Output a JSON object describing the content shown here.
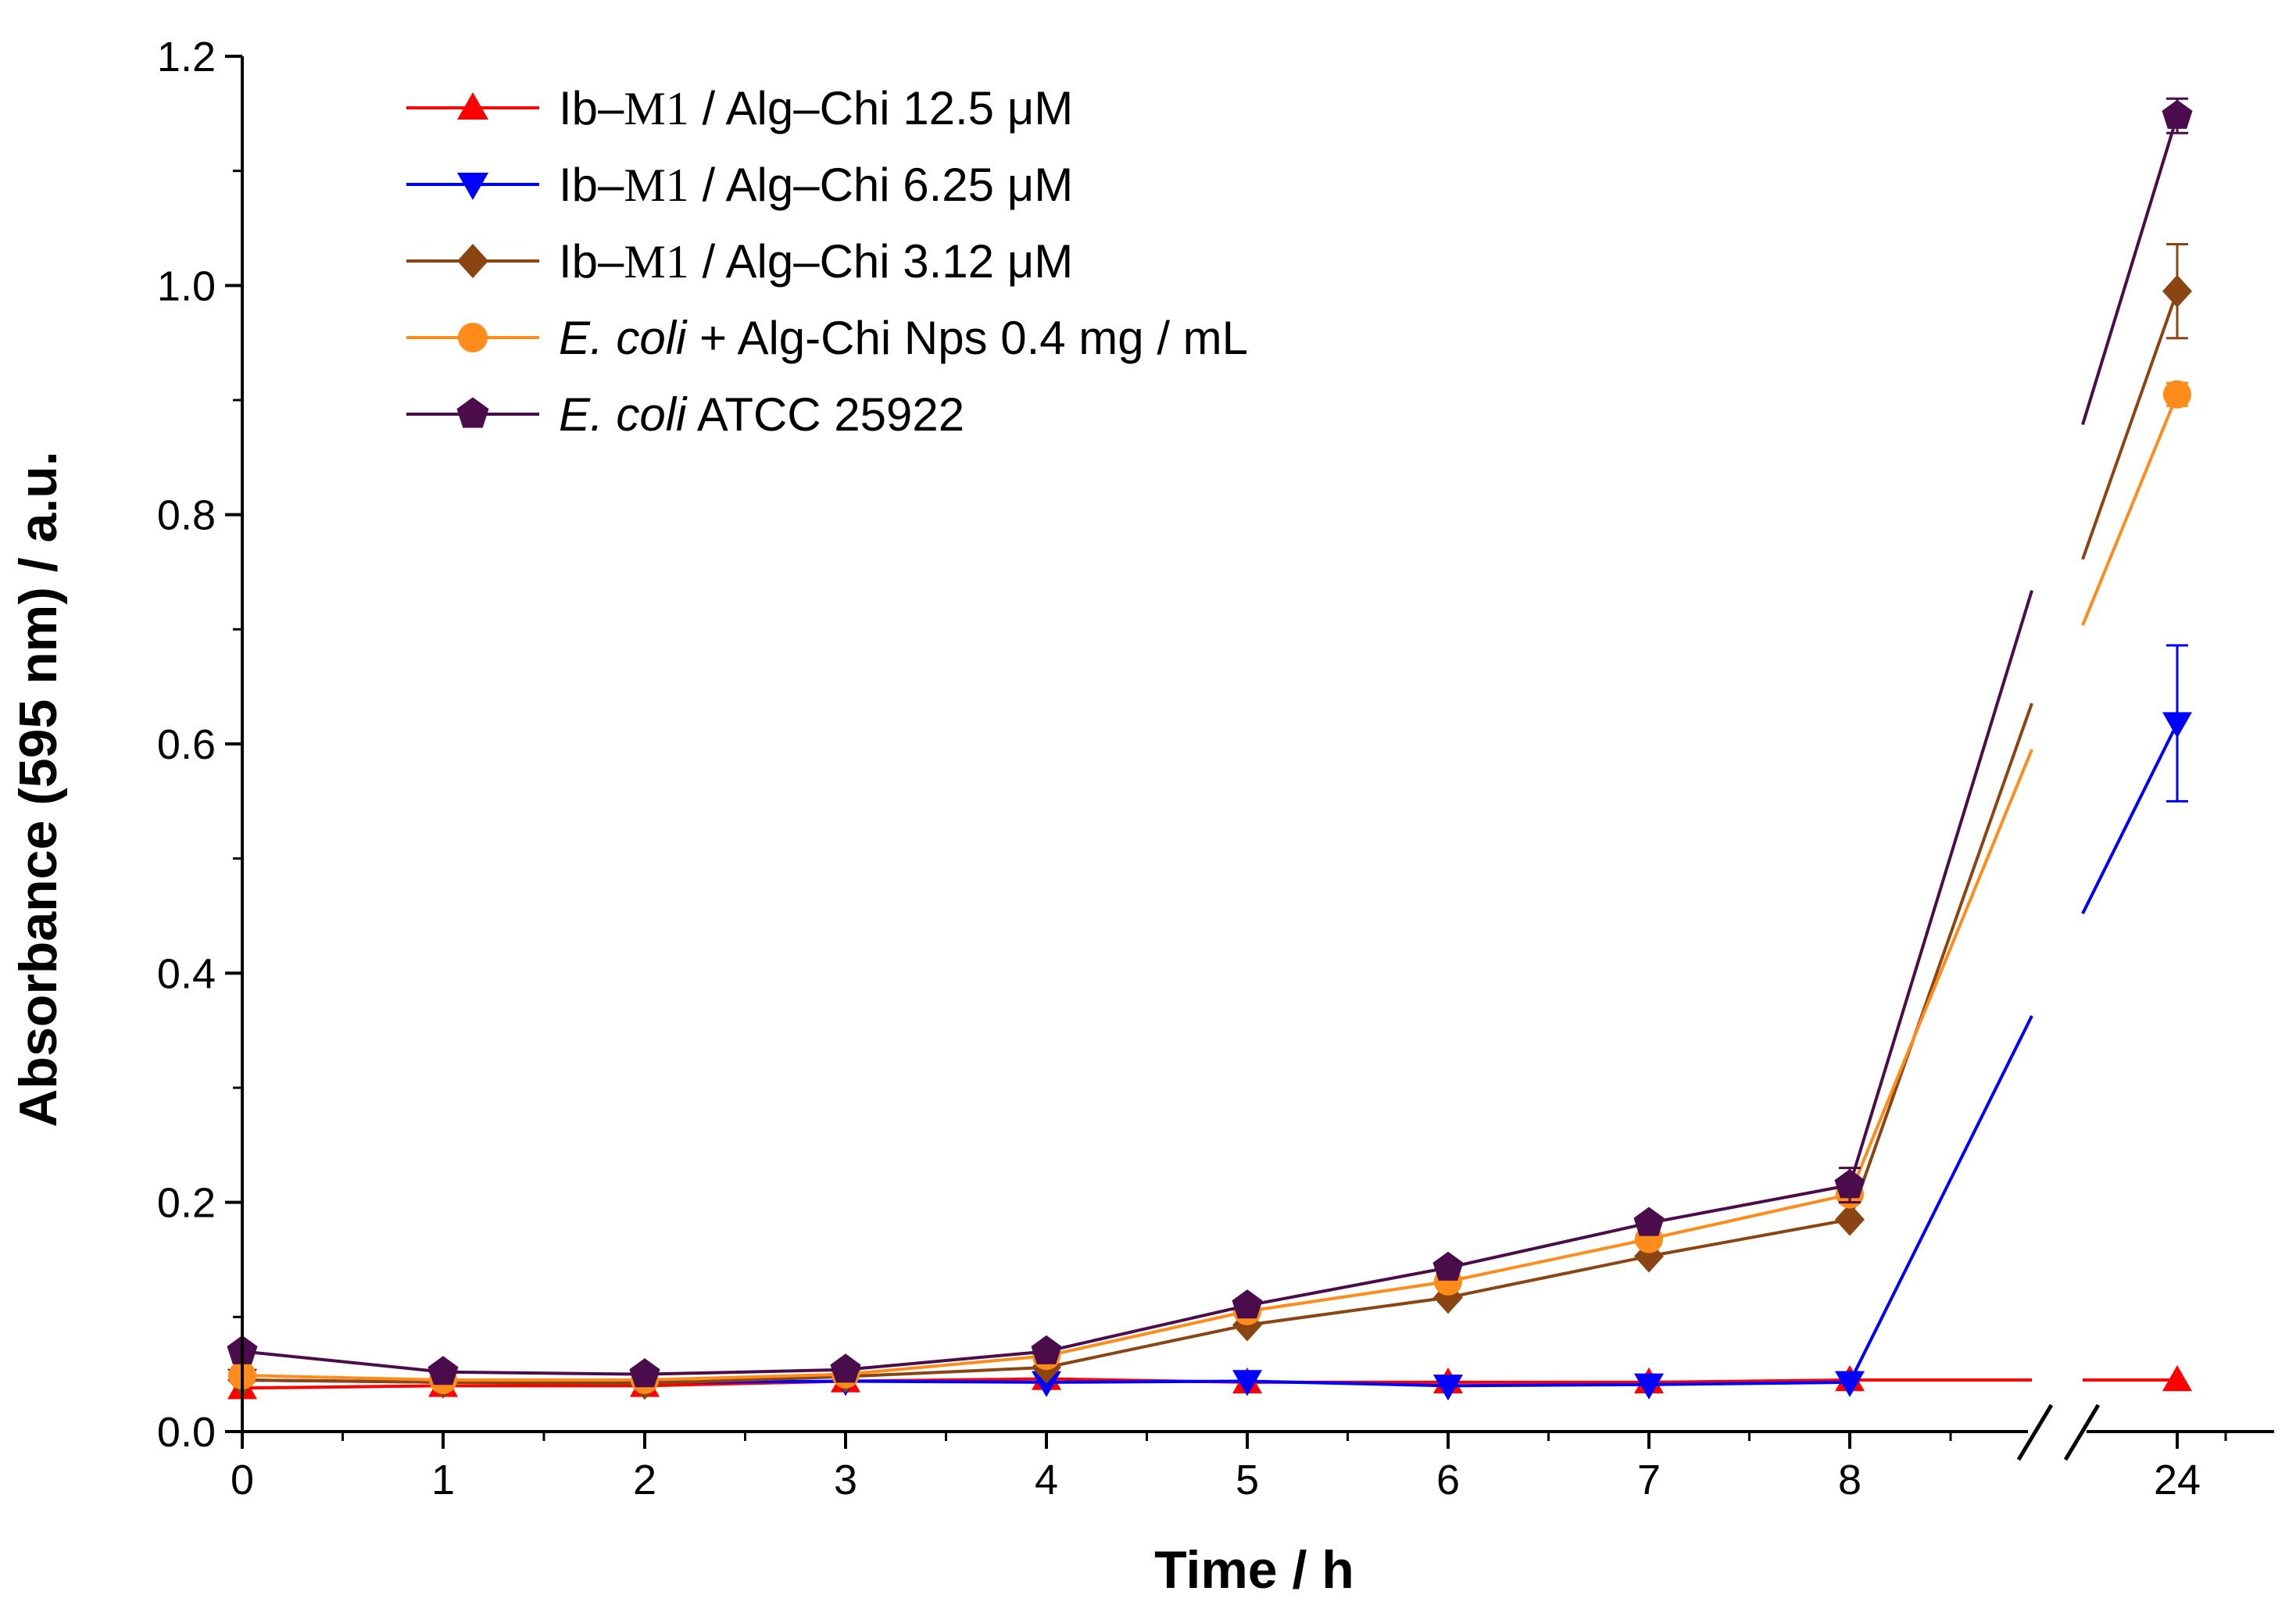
{
  "chart_data": {
    "type": "line",
    "xlabel": "Time / h",
    "ylabel": "Absorbance (595 nm) / a.u.",
    "ylim": [
      0.0,
      1.2
    ],
    "yticks": [
      "0.0",
      "0.2",
      "0.4",
      "0.6",
      "0.8",
      "1.0",
      "1.2"
    ],
    "x_ticks": [
      "0",
      "1",
      "2",
      "3",
      "4",
      "5",
      "6",
      "7",
      "8",
      "24"
    ],
    "x": [
      0,
      1,
      2,
      3,
      4,
      5,
      6,
      7,
      8,
      24
    ],
    "axis_break": "between 8 and 24",
    "legend_position": "top-left",
    "series": [
      {
        "name": "Ib–M1 / Alg–Chi 12.5 μM",
        "legend_parts": [
          "Ib–",
          "M1",
          " / Alg–Chi 12.5 μM"
        ],
        "color": "#ff0000",
        "marker": "triangle-up",
        "values": [
          0.038,
          0.04,
          0.04,
          0.044,
          0.046,
          0.043,
          0.043,
          0.043,
          0.045,
          0.045
        ],
        "errors": [
          0.003,
          0.002,
          0.002,
          0.002,
          0.002,
          0.002,
          0.002,
          0.002,
          0.002,
          0.002
        ]
      },
      {
        "name": "Ib–M1 / Alg–Chi 6.25 μM",
        "legend_parts": [
          "Ib–",
          "M1",
          " / Alg–Chi 6.25 μM"
        ],
        "color": "#0000ff",
        "marker": "triangle-down",
        "values": [
          0.045,
          0.043,
          0.043,
          0.044,
          0.043,
          0.044,
          0.04,
          0.041,
          0.043,
          0.618
        ],
        "errors": [
          0.003,
          0.002,
          0.002,
          0.002,
          0.002,
          0.002,
          0.002,
          0.002,
          0.002,
          0.068
        ]
      },
      {
        "name": "Ib–M1 / Alg–Chi 3.12 μM",
        "legend_parts": [
          "Ib–",
          "M1",
          " / Alg–Chi 3.12 μM"
        ],
        "color": "#8b4513",
        "marker": "diamond",
        "values": [
          0.045,
          0.043,
          0.042,
          0.048,
          0.056,
          0.093,
          0.117,
          0.153,
          0.185,
          0.995
        ],
        "errors": [
          0.003,
          0.002,
          0.002,
          0.002,
          0.003,
          0.004,
          0.004,
          0.005,
          0.006,
          0.041
        ]
      },
      {
        "name": "E. coli + Alg-Chi Nps 0.4 mg / mL",
        "legend_parts": [
          "E. coli",
          " + Alg-Chi Nps 0.4 mg / mL"
        ],
        "color": "#ff8c1a",
        "marker": "circle",
        "values": [
          0.049,
          0.045,
          0.045,
          0.05,
          0.066,
          0.105,
          0.131,
          0.168,
          0.207,
          0.905
        ],
        "errors": [
          0.003,
          0.002,
          0.002,
          0.002,
          0.003,
          0.004,
          0.004,
          0.005,
          0.006,
          0.01
        ]
      },
      {
        "name": "E. coli ATCC 25922",
        "legend_parts": [
          "E. coli",
          " ATCC 25922"
        ],
        "color": "#4b0c4b",
        "marker": "pentagon",
        "values": [
          0.07,
          0.052,
          0.05,
          0.054,
          0.07,
          0.11,
          0.143,
          0.182,
          0.215,
          1.148
        ],
        "errors": [
          0.005,
          0.003,
          0.003,
          0.003,
          0.003,
          0.004,
          0.005,
          0.006,
          0.015,
          0.015
        ]
      }
    ]
  }
}
